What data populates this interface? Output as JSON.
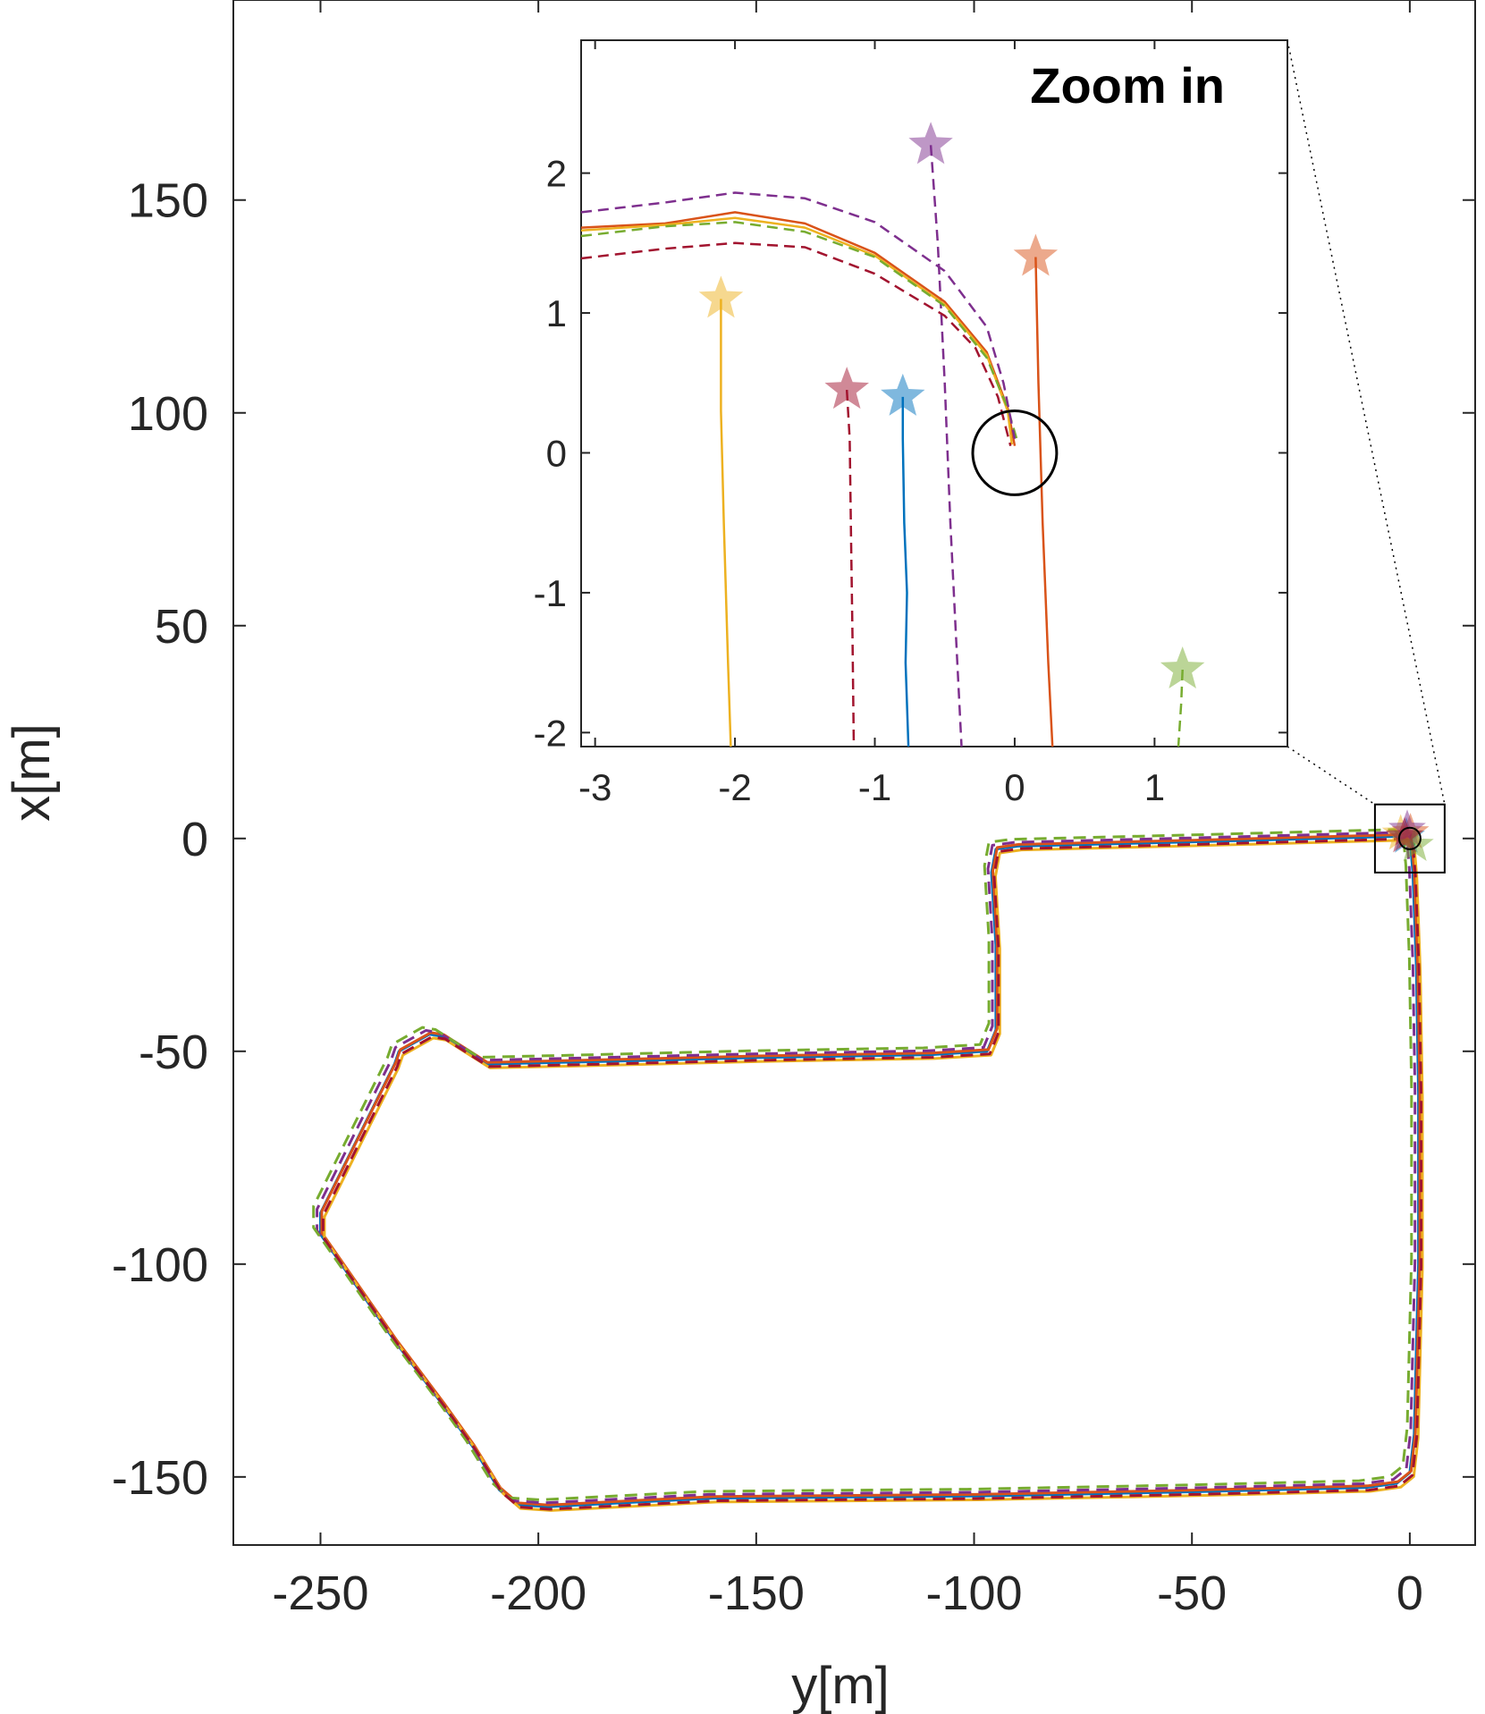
{
  "chart_data": {
    "type": "line",
    "xlabel": "y[m]",
    "ylabel": "x[m]",
    "xlim": [
      -270,
      15
    ],
    "ylim": [
      -166,
      197
    ],
    "xticks": [
      -250,
      -200,
      -150,
      -100,
      -50,
      0
    ],
    "yticks": [
      150,
      100,
      50,
      0,
      -50,
      -100,
      -150
    ],
    "xtick_labels": [
      "-250",
      "-200",
      "-150",
      "-100",
      "-50",
      "0"
    ],
    "ytick_labels": [
      "150",
      "100",
      "50",
      "0",
      "-50",
      "-100",
      "-150"
    ],
    "grid": false,
    "zoom_box": {
      "xlim": [
        -8,
        8
      ],
      "ylim": [
        -8,
        8
      ]
    },
    "series": [
      {
        "color": "#0072BD",
        "dash": "solid",
        "offset": [
          0.0,
          0.0
        ],
        "start": [
          -0.8,
          0.4
        ]
      },
      {
        "color": "#D95319",
        "dash": "solid",
        "offset": [
          0.3,
          0.4
        ],
        "start": [
          0.15,
          1.4
        ]
      },
      {
        "color": "#EDB120",
        "dash": "solid",
        "offset": [
          0.9,
          -0.9
        ],
        "start": [
          -2.1,
          1.1
        ]
      },
      {
        "color": "#7E2F8E",
        "dash": "dashed",
        "offset": [
          -0.8,
          0.9
        ],
        "start": [
          -0.6,
          2.2
        ]
      },
      {
        "color": "#77AC30",
        "dash": "dashed",
        "offset": [
          -1.6,
          1.6
        ],
        "start": [
          1.2,
          -1.55
        ]
      },
      {
        "color": "#A2142F",
        "dash": "dashed",
        "offset": [
          0.6,
          -0.6
        ],
        "start": [
          -1.2,
          0.45
        ]
      }
    ],
    "path": [
      [
        0,
        0
      ],
      [
        -2,
        0.5
      ],
      [
        -50,
        -0.8
      ],
      [
        -90,
        -1.8
      ],
      [
        -95,
        -2.5
      ],
      [
        -96,
        -8
      ],
      [
        -95,
        -25
      ],
      [
        -95,
        -45
      ],
      [
        -97,
        -50
      ],
      [
        -110,
        -50.8
      ],
      [
        -150,
        -51.5
      ],
      [
        -190,
        -52.5
      ],
      [
        -212,
        -53
      ],
      [
        -222,
        -46.5
      ],
      [
        -225,
        -46
      ],
      [
        -232,
        -50
      ],
      [
        -233,
        -53
      ],
      [
        -250,
        -88
      ],
      [
        -250,
        -93
      ],
      [
        -233,
        -118
      ],
      [
        -222,
        -133
      ],
      [
        -215,
        -143
      ],
      [
        -209,
        -153
      ],
      [
        -205,
        -156.5
      ],
      [
        -198,
        -157
      ],
      [
        -160,
        -155
      ],
      [
        -100,
        -154.5
      ],
      [
        -50,
        -153.5
      ],
      [
        -10,
        -152.5
      ],
      [
        -3,
        -151.5
      ],
      [
        0,
        -149
      ],
      [
        1,
        -140
      ],
      [
        2,
        -100
      ],
      [
        2,
        -60
      ],
      [
        1.5,
        -30
      ],
      [
        0.7,
        -8
      ],
      [
        0.2,
        -2
      ],
      [
        0,
        0
      ]
    ],
    "inset": {
      "title": "Zoom in",
      "xlim": [
        -3.1,
        1.95
      ],
      "ylim": [
        -2.1,
        2.95
      ],
      "xticks": [
        -3,
        -2,
        -1,
        0,
        1
      ],
      "yticks": [
        2,
        1,
        0,
        -1,
        -2
      ],
      "xtick_labels": [
        "-3",
        "-2",
        "-1",
        "0",
        "1"
      ],
      "ytick_labels": [
        "2",
        "1",
        "0",
        "-1",
        "-2"
      ],
      "circle": {
        "center": [
          0,
          0
        ],
        "radius": 0.3
      },
      "series": [
        {
          "color": "#0072BD",
          "dash": "solid",
          "points": [
            [
              -0.8,
              0.4
            ],
            [
              -0.8,
              0.1
            ],
            [
              -0.79,
              -0.5
            ],
            [
              -0.77,
              -1.0
            ],
            [
              -0.78,
              -1.5
            ],
            [
              -0.76,
              -2.1
            ]
          ]
        },
        {
          "color": "#D95319",
          "dash": "solid",
          "points": [
            [
              0.15,
              1.4
            ],
            [
              0.17,
              0.5
            ],
            [
              0.2,
              -0.5
            ],
            [
              0.24,
              -1.5
            ],
            [
              0.27,
              -2.1
            ]
          ]
        },
        {
          "color": "#EDB120",
          "dash": "solid",
          "points": [
            [
              -2.1,
              1.1
            ],
            [
              -2.1,
              0.3
            ],
            [
              -2.08,
              -0.5
            ],
            [
              -2.05,
              -1.5
            ],
            [
              -2.03,
              -2.1
            ]
          ]
        },
        {
          "color": "#7E2F8E",
          "dash": "dashed",
          "points": [
            [
              -0.6,
              2.2
            ],
            [
              -0.55,
              1.5
            ],
            [
              -0.5,
              0.5
            ],
            [
              -0.46,
              -0.5
            ],
            [
              -0.42,
              -1.3
            ],
            [
              -0.38,
              -2.1
            ]
          ]
        },
        {
          "color": "#77AC30",
          "dash": "dashed",
          "points": [
            [
              1.2,
              -1.55
            ],
            [
              1.19,
              -1.8
            ],
            [
              1.17,
              -2.1
            ]
          ]
        },
        {
          "color": "#A2142F",
          "dash": "dashed",
          "points": [
            [
              -1.2,
              0.45
            ],
            [
              -1.18,
              0.1
            ],
            [
              -1.17,
              -0.6
            ],
            [
              -1.16,
              -1.3
            ],
            [
              -1.15,
              -2.1
            ]
          ]
        },
        {
          "color": "#D95319",
          "dash": "solid",
          "points": [
            [
              -3.1,
              1.61
            ],
            [
              -2.5,
              1.64
            ],
            [
              -2.0,
              1.72
            ],
            [
              -1.5,
              1.64
            ],
            [
              -1.0,
              1.43
            ],
            [
              -0.5,
              1.08
            ],
            [
              -0.2,
              0.72
            ],
            [
              -0.05,
              0.32
            ],
            [
              0.0,
              0.05
            ]
          ]
        },
        {
          "color": "#EDB120",
          "dash": "solid",
          "points": [
            [
              -3.1,
              1.59
            ],
            [
              -2.5,
              1.63
            ],
            [
              -2.0,
              1.68
            ],
            [
              -1.5,
              1.61
            ],
            [
              -1.0,
              1.41
            ],
            [
              -0.5,
              1.06
            ],
            [
              -0.2,
              0.7
            ],
            [
              -0.05,
              0.3
            ],
            [
              -0.02,
              0.06
            ]
          ]
        },
        {
          "color": "#77AC30",
          "dash": "dashed",
          "points": [
            [
              -3.1,
              1.55
            ],
            [
              -2.5,
              1.62
            ],
            [
              -2.0,
              1.65
            ],
            [
              -1.5,
              1.58
            ],
            [
              -1.0,
              1.4
            ],
            [
              -0.5,
              1.05
            ],
            [
              -0.2,
              0.68
            ],
            [
              -0.05,
              0.32
            ],
            [
              0.02,
              0.08
            ]
          ]
        },
        {
          "color": "#7E2F8E",
          "dash": "dashed",
          "points": [
            [
              -3.1,
              1.72
            ],
            [
              -2.5,
              1.79
            ],
            [
              -2.0,
              1.86
            ],
            [
              -1.5,
              1.82
            ],
            [
              -1.0,
              1.65
            ],
            [
              -0.5,
              1.3
            ],
            [
              -0.2,
              0.9
            ],
            [
              -0.08,
              0.5
            ],
            [
              0.0,
              0.1
            ]
          ]
        },
        {
          "color": "#A2142F",
          "dash": "dashed",
          "points": [
            [
              -3.1,
              1.39
            ],
            [
              -2.5,
              1.46
            ],
            [
              -2.0,
              1.5
            ],
            [
              -1.5,
              1.47
            ],
            [
              -1.0,
              1.28
            ],
            [
              -0.5,
              0.98
            ],
            [
              -0.28,
              0.75
            ],
            [
              -0.12,
              0.4
            ],
            [
              -0.03,
              0.05
            ]
          ]
        }
      ],
      "stars": [
        {
          "color": "#0072BD",
          "x": -0.8,
          "y": 0.4
        },
        {
          "color": "#D95319",
          "x": 0.15,
          "y": 1.4
        },
        {
          "color": "#EDB120",
          "x": -2.1,
          "y": 1.1
        },
        {
          "color": "#7E2F8E",
          "x": -0.6,
          "y": 2.2
        },
        {
          "color": "#77AC30",
          "x": 1.2,
          "y": -1.55
        },
        {
          "color": "#A2142F",
          "x": -1.2,
          "y": 0.45
        }
      ]
    }
  }
}
